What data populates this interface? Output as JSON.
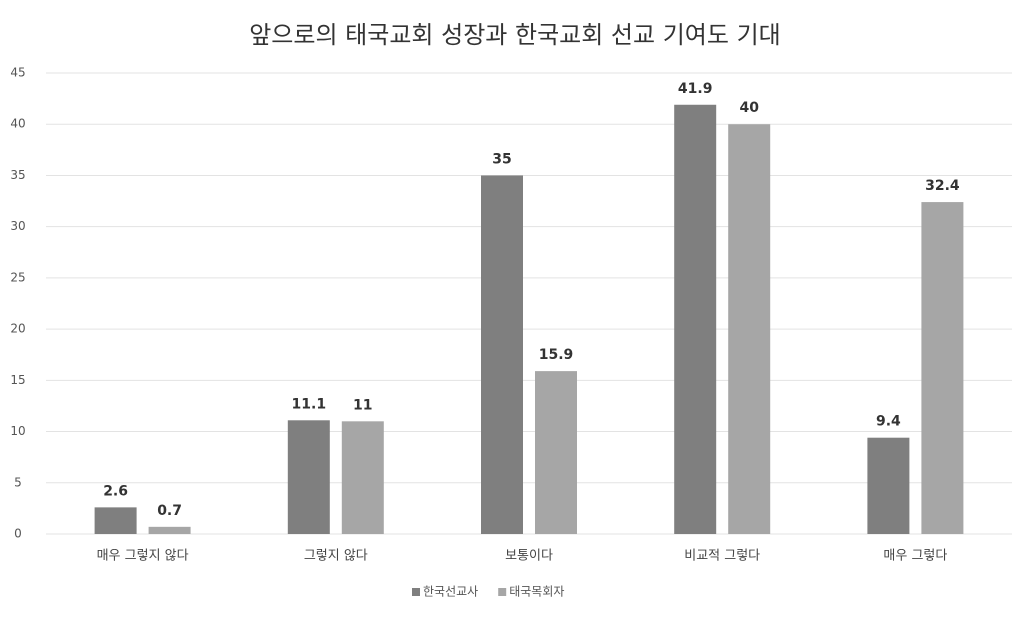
{
  "chart_data": {
    "type": "bar",
    "title": "앞으로의 태국교회 성장과 한국교회 선교 기여도 기대",
    "categories": [
      "매우 그렇지 않다",
      "그렇지 않다",
      "보통이다",
      "비교적 그렇다",
      "매우 그렇다"
    ],
    "series": [
      {
        "name": "한국선교사",
        "color": "#7f7f7f",
        "values": [
          2.6,
          11.1,
          35,
          41.9,
          9.4
        ]
      },
      {
        "name": "태국목회자",
        "color": "#a6a6a6",
        "values": [
          0.7,
          11,
          15.9,
          40,
          32.4
        ]
      }
    ],
    "ylim": [
      0,
      45
    ],
    "yticks": [
      0,
      5,
      10,
      15,
      20,
      25,
      30,
      35,
      40,
      45
    ],
    "grid": true,
    "legend": "bottom"
  }
}
